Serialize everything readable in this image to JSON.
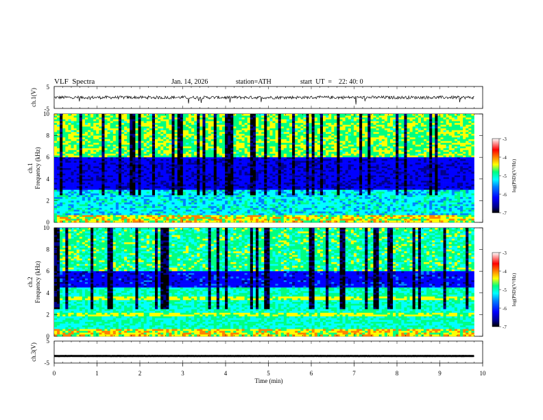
{
  "header": {
    "title": "VLF  Spectra",
    "date": "Jan. 14, 2026",
    "station": "station=ATH",
    "start": "start  UT  =    22: 40: 0"
  },
  "chart_data": [
    {
      "type": "line",
      "panel": "ch1-waveform",
      "ylabel": "ch.1(V)",
      "ylim": [
        -5,
        5
      ],
      "yticks": [
        "5",
        "-5"
      ],
      "xlim": [
        0,
        10
      ],
      "trace_level": 0,
      "color": "#000000"
    },
    {
      "type": "heatmap",
      "panel": "ch1-spectrogram",
      "ylabel_top": "ch.1",
      "ylabel": "Frequency (kHz)",
      "ylim": [
        0,
        10
      ],
      "yticks": [
        "0",
        "2",
        "4",
        "6",
        "8",
        "10"
      ],
      "xlim": [
        0,
        9.8
      ],
      "colorbar": {
        "label": "log(PSD)(V²/Hz)",
        "range": [
          -7,
          -3
        ],
        "ticks": [
          "-3",
          "-4",
          "-5",
          "-6",
          "-7"
        ]
      }
    },
    {
      "type": "heatmap",
      "panel": "ch2-spectrogram",
      "ylabel_top": "ch.2",
      "ylabel": "Frequency (kHz)",
      "ylim": [
        0,
        10
      ],
      "yticks": [
        "0",
        "2",
        "4",
        "6",
        "8",
        "10"
      ],
      "xlim": [
        0,
        9.8
      ],
      "colorbar": {
        "label": "log(PSD)(V²/Hz)",
        "range": [
          -7,
          -3
        ],
        "ticks": [
          "-3",
          "-4",
          "-5",
          "-6",
          "-7"
        ]
      }
    },
    {
      "type": "line",
      "panel": "ch3-waveform",
      "ylabel": "ch.3(V)",
      "ylim": [
        -5,
        5
      ],
      "yticks": [
        "5",
        "-5"
      ],
      "xlim": [
        0,
        10
      ],
      "trace_level": -1.8,
      "color": "#000000"
    }
  ],
  "x_axis": {
    "label": "Time  (min)",
    "ticks": [
      "0",
      "1",
      "2",
      "3",
      "4",
      "5",
      "6",
      "7",
      "8",
      "9",
      "10"
    ],
    "range": [
      0,
      10
    ]
  },
  "colors": {
    "palette": [
      "#000000",
      "#00008b",
      "#0000ff",
      "#0080ff",
      "#00ffff",
      "#00ff80",
      "#ffff00",
      "#ff8000",
      "#ff0000",
      "#ffffff"
    ]
  }
}
